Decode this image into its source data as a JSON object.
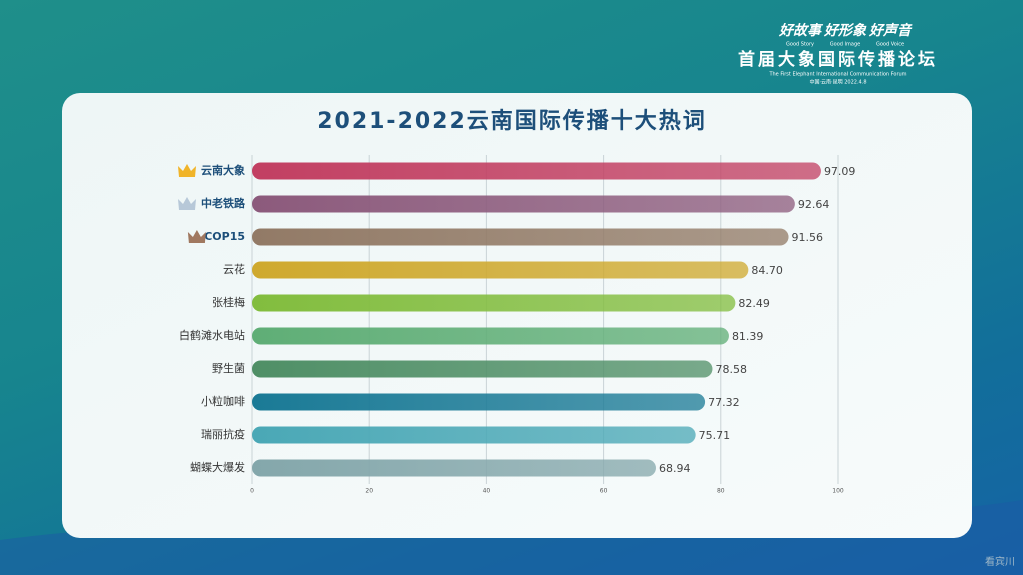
{
  "header": {
    "slogans": [
      "好故事",
      "好形象",
      "好声音"
    ],
    "slogan_subs": [
      "Good Story",
      "Good Image",
      "Good Voice"
    ],
    "forum": "首届大象国际传播论坛",
    "forum_en": "The First Elephant International Communication Forum",
    "place_date": "中国·云南·昆明 2022.4.8"
  },
  "watermark": "看宾川",
  "chart_data": {
    "type": "hbar",
    "title": "2021-2022云南国际传播十大热词",
    "categories": [
      "云南大象",
      "中老铁路",
      "COP15",
      "云花",
      "张桂梅",
      "白鹤滩水电站",
      "野生菌",
      "小粒咖啡",
      "瑞丽抗疫",
      "蝴蝶大爆发"
    ],
    "values": [
      97.09,
      92.64,
      91.56,
      84.7,
      82.49,
      81.39,
      78.58,
      77.32,
      75.71,
      68.94
    ],
    "value_labels": [
      "97.09",
      "92.64",
      "91.56",
      "84.70",
      "82.49",
      "81.39",
      "78.58",
      "77.32",
      "75.71",
      "68.94"
    ],
    "colors": [
      "#c23f62",
      "#8c5a7c",
      "#927a66",
      "#cfa92e",
      "#82bd3e",
      "#5fae76",
      "#4f8f66",
      "#1a7a96",
      "#4aa8b6",
      "#84a7ab"
    ],
    "xlim": [
      0,
      100
    ],
    "xticks": [
      0,
      20,
      40,
      60,
      80,
      100
    ],
    "grid": true
  }
}
